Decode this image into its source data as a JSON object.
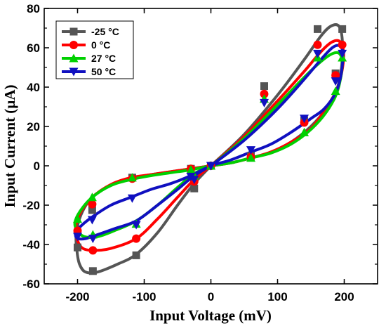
{
  "chart_data": {
    "type": "line",
    "xlabel": "Input Voltage (mV)",
    "ylabel": "Input Current (µA)",
    "xlim": [
      -250,
      250
    ],
    "ylim": [
      -60,
      80
    ],
    "x_ticks": [
      -200,
      -100,
      0,
      100,
      200
    ],
    "x_tick_labels": [
      "-200",
      "-100",
      "0",
      "100",
      "200"
    ],
    "y_ticks": [
      -60,
      -40,
      -20,
      0,
      20,
      40,
      60,
      80
    ],
    "y_tick_labels": [
      "-60",
      "-40",
      "-20",
      "0",
      "20",
      "40",
      "60",
      "80"
    ],
    "grid": false,
    "legend_position": "top-left",
    "series": [
      {
        "name": "-25 °C",
        "color": "#555555",
        "marker": "square",
        "curve": [
          [
            0,
            0
          ],
          [
            50,
            16
          ],
          [
            100,
            36
          ],
          [
            140,
            54
          ],
          [
            165,
            66
          ],
          [
            180,
            71
          ],
          [
            192,
            71
          ],
          [
            197,
            64
          ],
          [
            196,
            50
          ],
          [
            190,
            40
          ],
          [
            175,
            30
          ],
          [
            150,
            20
          ],
          [
            120,
            12
          ],
          [
            90,
            7
          ],
          [
            60,
            4
          ],
          [
            30,
            1.5
          ],
          [
            0,
            0
          ],
          [
            -30,
            -1.5
          ],
          [
            -60,
            -3
          ],
          [
            -90,
            -4.5
          ],
          [
            -120,
            -6.5
          ],
          [
            -150,
            -10
          ],
          [
            -178,
            -16
          ],
          [
            -195,
            -25
          ],
          [
            -202,
            -35
          ],
          [
            -201,
            -43
          ],
          [
            -197,
            -50
          ],
          [
            -188,
            -54
          ],
          [
            -170,
            -54
          ],
          [
            -140,
            -50
          ],
          [
            -112,
            -45
          ],
          [
            -80,
            -34
          ],
          [
            -50,
            -20
          ],
          [
            -25,
            -9
          ],
          [
            0,
            0
          ]
        ],
        "points": [
          [
            160,
            69.5
          ],
          [
            197,
            69.5
          ],
          [
            187,
            47
          ],
          [
            140,
            23
          ],
          [
            60,
            5
          ],
          [
            0,
            0
          ],
          [
            -30,
            -1.5
          ],
          [
            -118,
            -6
          ],
          [
            -178,
            -22.5
          ],
          [
            -200,
            -41.5
          ],
          [
            -177,
            -53.5
          ],
          [
            -112,
            -45.5
          ],
          [
            -25,
            -11.5
          ],
          [
            0,
            0
          ],
          [
            80,
            40.5
          ]
        ]
      },
      {
        "name": "0 °C",
        "color": "#ff0000",
        "marker": "circle",
        "curve": [
          [
            0,
            0
          ],
          [
            50,
            15
          ],
          [
            100,
            33
          ],
          [
            140,
            48
          ],
          [
            165,
            58
          ],
          [
            182,
            63
          ],
          [
            194,
            63
          ],
          [
            199,
            57
          ],
          [
            196,
            47
          ],
          [
            188,
            38
          ],
          [
            172,
            29
          ],
          [
            150,
            19
          ],
          [
            120,
            12
          ],
          [
            90,
            7
          ],
          [
            60,
            4
          ],
          [
            30,
            1.5
          ],
          [
            0,
            0
          ],
          [
            -30,
            -1.5
          ],
          [
            -60,
            -3
          ],
          [
            -90,
            -4.5
          ],
          [
            -120,
            -6
          ],
          [
            -150,
            -9.5
          ],
          [
            -178,
            -16
          ],
          [
            -196,
            -24
          ],
          [
            -203,
            -32
          ],
          [
            -200,
            -38
          ],
          [
            -192,
            -42
          ],
          [
            -176,
            -43
          ],
          [
            -150,
            -42
          ],
          [
            -112,
            -37
          ],
          [
            -80,
            -27
          ],
          [
            -50,
            -16
          ],
          [
            -25,
            -7
          ],
          [
            0,
            0
          ]
        ],
        "points": [
          [
            160,
            61.5
          ],
          [
            197,
            61.5
          ],
          [
            187,
            46
          ],
          [
            140,
            22
          ],
          [
            60,
            4.5
          ],
          [
            0,
            0
          ],
          [
            -30,
            -1.5
          ],
          [
            -118,
            -6.5
          ],
          [
            -178,
            -19.5
          ],
          [
            -200,
            -33
          ],
          [
            -177,
            -43
          ],
          [
            -112,
            -37
          ],
          [
            -25,
            -8
          ],
          [
            0,
            0
          ],
          [
            80,
            36.5
          ]
        ]
      },
      {
        "name": "27 °C",
        "color": "#00d000",
        "marker": "triangle-up",
        "curve": [
          [
            0,
            0
          ],
          [
            50,
            14
          ],
          [
            100,
            31
          ],
          [
            140,
            45
          ],
          [
            165,
            53
          ],
          [
            182,
            57
          ],
          [
            193,
            57
          ],
          [
            197,
            52
          ],
          [
            193,
            42
          ],
          [
            185,
            34
          ],
          [
            168,
            25
          ],
          [
            145,
            17
          ],
          [
            120,
            11
          ],
          [
            90,
            6.5
          ],
          [
            60,
            4
          ],
          [
            30,
            1.5
          ],
          [
            0,
            0
          ],
          [
            -30,
            -2
          ],
          [
            -60,
            -3.5
          ],
          [
            -90,
            -5
          ],
          [
            -120,
            -7
          ],
          [
            -150,
            -10
          ],
          [
            -178,
            -16
          ],
          [
            -196,
            -23
          ],
          [
            -204,
            -29
          ],
          [
            -200,
            -33
          ],
          [
            -190,
            -36
          ],
          [
            -170,
            -36
          ],
          [
            -145,
            -33
          ],
          [
            -112,
            -28
          ],
          [
            -80,
            -20
          ],
          [
            -50,
            -11
          ],
          [
            -25,
            -4
          ],
          [
            0,
            0
          ]
        ],
        "points": [
          [
            160,
            55
          ],
          [
            197,
            55
          ],
          [
            187,
            38
          ],
          [
            140,
            17
          ],
          [
            60,
            4
          ],
          [
            0,
            0
          ],
          [
            -30,
            -2
          ],
          [
            -118,
            -6
          ],
          [
            -178,
            -16
          ],
          [
            -200,
            -27
          ],
          [
            -177,
            -35
          ],
          [
            -112,
            -29.5
          ],
          [
            -25,
            -5
          ],
          [
            0,
            0
          ],
          [
            80,
            34
          ]
        ]
      },
      {
        "name": "50 °C",
        "color": "#1010c0",
        "marker": "triangle-down",
        "curve": [
          [
            0,
            0
          ],
          [
            50,
            13
          ],
          [
            100,
            29
          ],
          [
            140,
            44
          ],
          [
            165,
            54
          ],
          [
            182,
            60
          ],
          [
            193,
            61
          ],
          [
            198,
            57
          ],
          [
            195,
            46
          ],
          [
            187,
            37
          ],
          [
            170,
            29
          ],
          [
            150,
            24
          ],
          [
            120,
            17
          ],
          [
            90,
            11
          ],
          [
            60,
            7
          ],
          [
            30,
            3
          ],
          [
            0,
            0
          ],
          [
            -30,
            -5
          ],
          [
            -60,
            -9
          ],
          [
            -90,
            -12
          ],
          [
            -120,
            -16
          ],
          [
            -150,
            -20
          ],
          [
            -178,
            -26
          ],
          [
            -196,
            -31
          ],
          [
            -203,
            -35
          ],
          [
            -199,
            -37
          ],
          [
            -188,
            -37
          ],
          [
            -170,
            -35
          ],
          [
            -145,
            -32
          ],
          [
            -112,
            -28
          ],
          [
            -80,
            -20
          ],
          [
            -50,
            -12
          ],
          [
            -25,
            -5
          ],
          [
            0,
            0
          ]
        ],
        "points": [
          [
            160,
            57
          ],
          [
            197,
            57
          ],
          [
            187,
            43
          ],
          [
            140,
            24
          ],
          [
            60,
            8
          ],
          [
            0,
            0
          ],
          [
            -30,
            -5.5
          ],
          [
            -118,
            -16.5
          ],
          [
            -178,
            -27.5
          ],
          [
            -200,
            -36
          ],
          [
            -177,
            -37
          ],
          [
            -112,
            -30
          ],
          [
            -25,
            -7
          ],
          [
            0,
            0
          ],
          [
            80,
            32
          ]
        ]
      }
    ]
  }
}
